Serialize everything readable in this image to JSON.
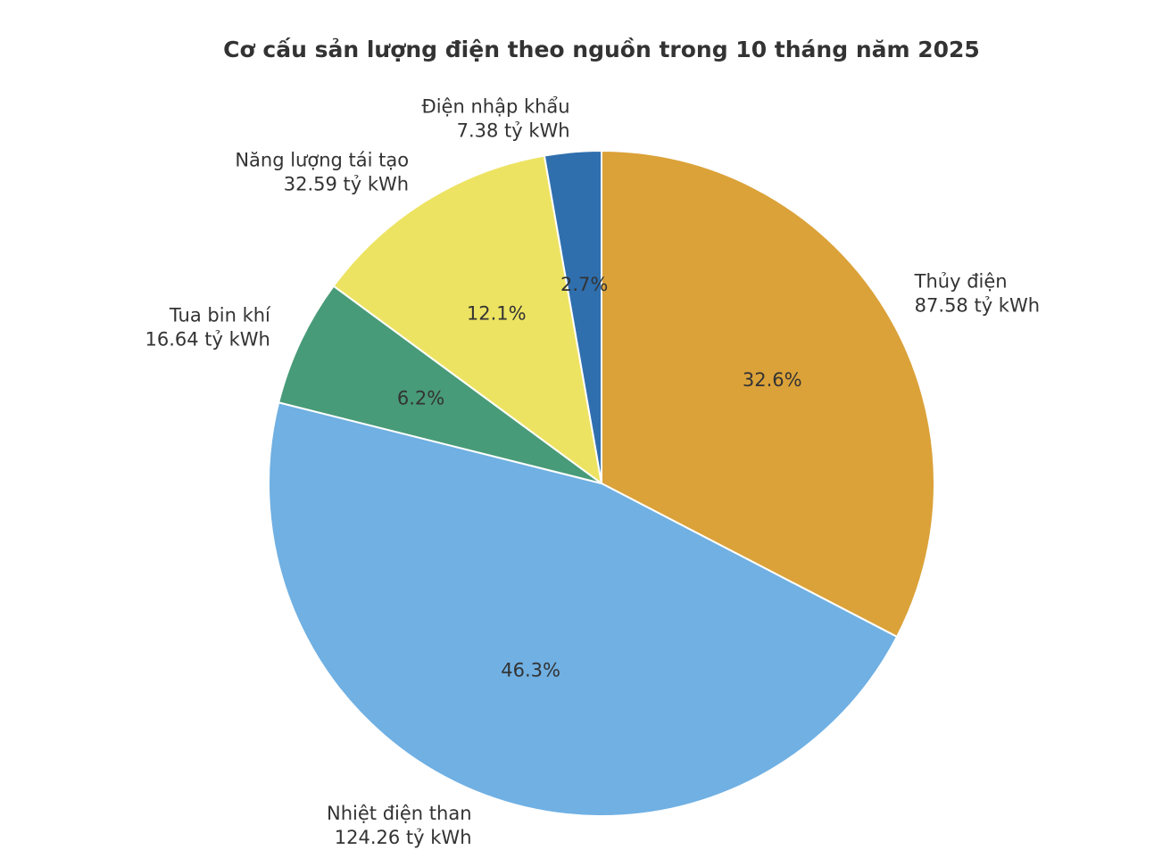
{
  "chart_data": {
    "type": "pie",
    "title": "Cơ cấu sản lượng điện theo nguồn trong 10 tháng năm 2025",
    "unit": "tỷ kWh",
    "start_angle_deg": 90,
    "direction": "clockwise",
    "slices": [
      {
        "name": "Thủy điện",
        "value": 87.58,
        "value_label": "87.58 tỷ kWh",
        "percent_label": "32.6%",
        "color": "#DBA239"
      },
      {
        "name": "Nhiệt điện than",
        "value": 124.26,
        "value_label": "124.26 tỷ kWh",
        "percent_label": "46.3%",
        "color": "#70B0E3"
      },
      {
        "name": "Tua bin khí",
        "value": 16.64,
        "value_label": "16.64 tỷ kWh",
        "percent_label": "6.2%",
        "color": "#489B78"
      },
      {
        "name": "Năng lượng tái tạo",
        "value": 32.59,
        "value_label": "32.59 tỷ kWh",
        "percent_label": "12.1%",
        "color": "#EDE362"
      },
      {
        "name": "Điện nhập khẩu",
        "value": 7.38,
        "value_label": "7.38 tỷ kWh",
        "percent_label": "2.7%",
        "color": "#2F6FAE"
      }
    ]
  }
}
